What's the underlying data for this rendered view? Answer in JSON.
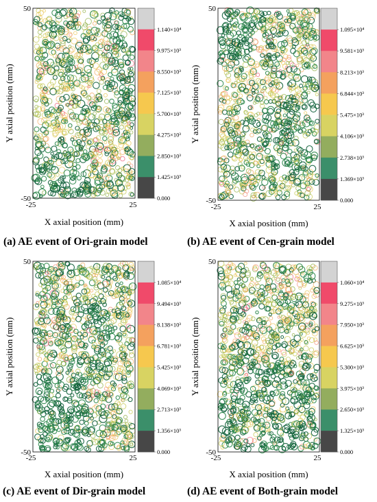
{
  "chart_data": [
    {
      "type": "scatter",
      "caption": "(a) AE event of Ori-grain model",
      "xlabel": "X axial position (mm)",
      "ylabel": "Y axial position (mm)",
      "xlim": [
        -25,
        25
      ],
      "ylim": [
        -50,
        50
      ],
      "x_tick_labels": [
        "-25",
        "25"
      ],
      "y_tick_labels": [
        "50",
        "-50"
      ],
      "colorbar_labels": [
        "1.140×10⁴",
        "9.975×10³",
        "8.550×10³",
        "7.125×10³",
        "5.700×10³",
        "4.275×10³",
        "2.850×10³",
        "1.425×10³",
        "0.000"
      ],
      "colorbar_max": 11400,
      "seed": 11,
      "green_bias": "bottom-left and right strip"
    },
    {
      "type": "scatter",
      "caption": "(b) AE event of Cen-grain model",
      "xlabel": "X axial position (mm)",
      "ylabel": "Y axial position (mm)",
      "xlim": [
        -25,
        25
      ],
      "ylim": [
        -50,
        50
      ],
      "x_tick_labels": [
        "-25",
        "25"
      ],
      "y_tick_labels": [
        "50",
        "-50"
      ],
      "colorbar_labels": [
        "1.095×10⁴",
        "9.581×10³",
        "8.213×10³",
        "6.844×10³",
        "5.475×10³",
        "4.106×10³",
        "2.738×10³",
        "1.369×10³",
        "0.000"
      ],
      "colorbar_max": 10950,
      "seed": 23,
      "green_bias": "top-left and lower-center"
    },
    {
      "type": "scatter",
      "caption": "(c) AE event of Dir-grain model",
      "xlabel": "X axial position (mm)",
      "ylabel": "Y axial position (mm)",
      "xlim": [
        -25,
        25
      ],
      "ylim": [
        -50,
        50
      ],
      "x_tick_labels": [
        "-25",
        "25"
      ],
      "y_tick_labels": [
        "50",
        "-50"
      ],
      "colorbar_labels": [
        "1.085×10⁴",
        "9.494×10³",
        "8.138×10³",
        "6.781×10³",
        "5.425×10³",
        "4.069×10³",
        "2.713×10³",
        "1.356×10³",
        "0.000"
      ],
      "colorbar_max": 10850,
      "seed": 37,
      "green_bias": "bottom-left and center"
    },
    {
      "type": "scatter",
      "caption": "(d) AE event of Both-grain model",
      "xlabel": "X axial position (mm)",
      "ylabel": "Y axial position (mm)",
      "xlim": [
        -25,
        25
      ],
      "ylim": [
        -50,
        50
      ],
      "x_tick_labels": [
        "-25",
        "25"
      ],
      "y_tick_labels": [
        "50",
        "-50"
      ],
      "colorbar_labels": [
        "1.060×10⁴",
        "9.275×10³",
        "7.950×10³",
        "6.625×10³",
        "5.300×10³",
        "3.975×10³",
        "2.650×10³",
        "1.325×10³",
        "0.000"
      ],
      "colorbar_max": 10600,
      "seed": 53,
      "green_bias": "lower half"
    }
  ],
  "colorbar_colors": [
    "#d3d3d3",
    "#f04a6a",
    "#f2858a",
    "#f4a15e",
    "#f6c84e",
    "#d8d362",
    "#93ad5e",
    "#3b8f6a",
    "#474747"
  ],
  "marker_colors": {
    "dark_green": "#0f5f3a",
    "green": "#2f8a4e",
    "olive": "#8cac3e",
    "yellow_green": "#c2c64a",
    "yellow": "#e9c44f",
    "orange": "#f0a659",
    "salmon": "#f28b7a",
    "pink": "#ef5a78"
  }
}
